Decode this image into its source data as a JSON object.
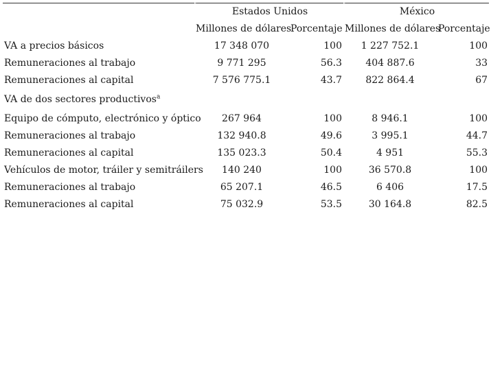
{
  "header": {
    "groups": [
      {
        "label": "Estados Unidos"
      },
      {
        "label": "México"
      }
    ],
    "subheaders": {
      "millions": "Millones de dólares",
      "percent": "Porcentaje"
    }
  },
  "rows": [
    {
      "label": "VA a precios básicos",
      "us_mill": "17 348 070",
      "us_pct": "100",
      "mx_mill": "1 227 752.1",
      "mx_pct": "100"
    },
    {
      "label": "Remuneraciones al trabajo",
      "us_mill": "9 771 295",
      "us_pct": "56.3",
      "mx_mill": "404 887.6",
      "mx_pct": "33"
    },
    {
      "label": "Remuneraciones al capital",
      "us_mill": "7 576 775.1",
      "us_pct": "43.7",
      "mx_mill": "822 864.4",
      "mx_pct": "67"
    }
  ],
  "section": {
    "label": "VA de dos sectores productivos",
    "footnote": "a"
  },
  "rows2": [
    {
      "label": "Equipo de cómputo, electrónico y óptico",
      "us_mill": "267 964",
      "us_pct": "100",
      "mx_mill": "8 946.1",
      "mx_pct": "100"
    },
    {
      "label": "Remuneraciones al trabajo",
      "us_mill": "132 940.8",
      "us_pct": "49.6",
      "mx_mill": "3 995.1",
      "mx_pct": "44.7"
    },
    {
      "label": "Remuneraciones al capital",
      "us_mill": "135 023.3",
      "us_pct": "50.4",
      "mx_mill": "4 951",
      "mx_pct": "55.3"
    },
    {
      "label": "Vehículos de motor, tráiler y semitráilers",
      "us_mill": "140 240",
      "us_pct": "100",
      "mx_mill": "36 570.8",
      "mx_pct": "100"
    },
    {
      "label": "Remuneraciones al trabajo",
      "us_mill": "65 207.1",
      "us_pct": "46.5",
      "mx_mill": "6 406",
      "mx_pct": "17.5"
    },
    {
      "label": "Remuneraciones al capital",
      "us_mill": "75 032.9",
      "us_pct": "53.5",
      "mx_mill": "30 164.8",
      "mx_pct": "82.5"
    }
  ]
}
